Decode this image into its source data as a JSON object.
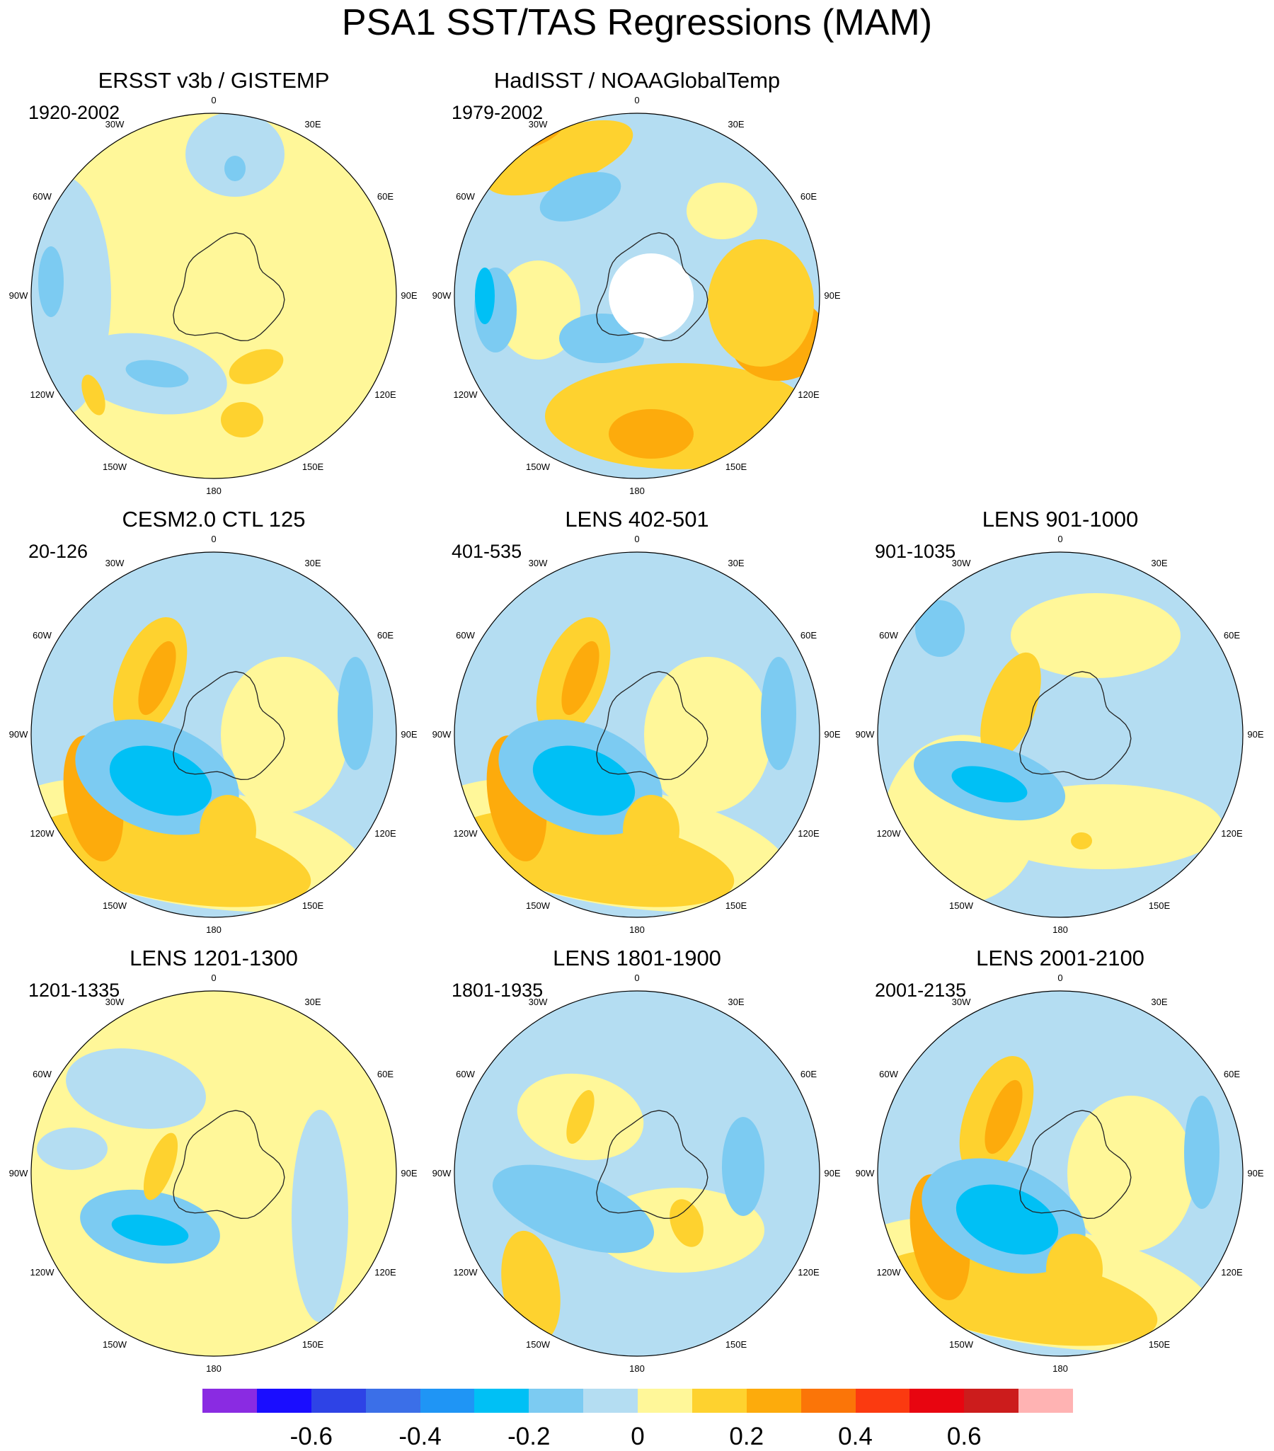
{
  "title": "PSA1 SST/TAS Regressions (MAM)",
  "longitude_labels": [
    "0",
    "30E",
    "60E",
    "90E",
    "120E",
    "150E",
    "180",
    "150W",
    "120W",
    "90W",
    "60W",
    "30W"
  ],
  "panels": [
    {
      "title": "ERSST v3b / GISTEMP",
      "period": "1920-2002",
      "pattern": "obs1"
    },
    {
      "title": "HadISST / NOAAGlobalTemp",
      "period": "1979-2002",
      "pattern": "obs2"
    },
    {
      "title": "CESM2.0 CTL 125",
      "period": "20-126",
      "pattern": "model-strong"
    },
    {
      "title": "LENS 402-501",
      "period": "401-535",
      "pattern": "model-strong"
    },
    {
      "title": "LENS 901-1000",
      "period": "901-1035",
      "pattern": "model-medium"
    },
    {
      "title": "LENS 1201-1300",
      "period": "1201-1335",
      "pattern": "model-weak"
    },
    {
      "title": "LENS 1801-1900",
      "period": "1801-1935",
      "pattern": "model-weaker"
    },
    {
      "title": "LENS 2001-2100",
      "period": "2001-2135",
      "pattern": "model-strong"
    }
  ],
  "colorbar": {
    "colors": [
      "#8a2be2",
      "#1a0dff",
      "#2e43e6",
      "#3b6fe8",
      "#1f95f5",
      "#00c0f5",
      "#7ccbf2",
      "#b4ddf2",
      "#fff799",
      "#fed22f",
      "#fdab0c",
      "#fb7508",
      "#fb3a10",
      "#e80510",
      "#cc1c1c",
      "#ffb3b3"
    ],
    "tick_labels": [
      "-0.6",
      "-0.4",
      "-0.2",
      "0",
      "0.2",
      "0.4",
      "0.6"
    ],
    "tick_values": [
      -0.6,
      -0.4,
      -0.2,
      0,
      0.2,
      0.4,
      0.6
    ]
  }
}
